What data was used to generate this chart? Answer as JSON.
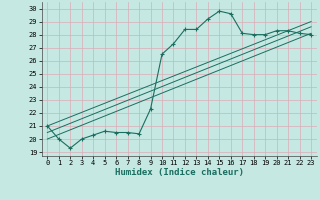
{
  "xlabel": "Humidex (Indice chaleur)",
  "background_color": "#c5e8e2",
  "grid_color": "#dbadb8",
  "line_color": "#1a6e60",
  "xlim": [
    -0.5,
    23.5
  ],
  "ylim": [
    18.7,
    30.5
  ],
  "yticks": [
    19,
    20,
    21,
    22,
    23,
    24,
    25,
    26,
    27,
    28,
    29,
    30
  ],
  "xticks": [
    0,
    1,
    2,
    3,
    4,
    5,
    6,
    7,
    8,
    9,
    10,
    11,
    12,
    13,
    14,
    15,
    16,
    17,
    18,
    19,
    20,
    21,
    22,
    23
  ],
  "line1_x": [
    0,
    1,
    2,
    3,
    4,
    5,
    6,
    7,
    8,
    9,
    10,
    11,
    12,
    13,
    14,
    15,
    16,
    17,
    18,
    19,
    20,
    21,
    22,
    23
  ],
  "line1_y": [
    21.0,
    20.0,
    19.3,
    20.0,
    20.3,
    20.6,
    20.5,
    20.5,
    20.4,
    22.3,
    26.5,
    27.3,
    28.4,
    28.4,
    29.2,
    29.8,
    29.6,
    28.1,
    28.0,
    28.0,
    28.3,
    28.3,
    28.1,
    28.0
  ],
  "line2_x": [
    0,
    23
  ],
  "line2_y": [
    21.0,
    29.0
  ],
  "line3_x": [
    0,
    23
  ],
  "line3_y": [
    20.5,
    28.6
  ],
  "line4_x": [
    0,
    23
  ],
  "line4_y": [
    20.0,
    28.1
  ]
}
